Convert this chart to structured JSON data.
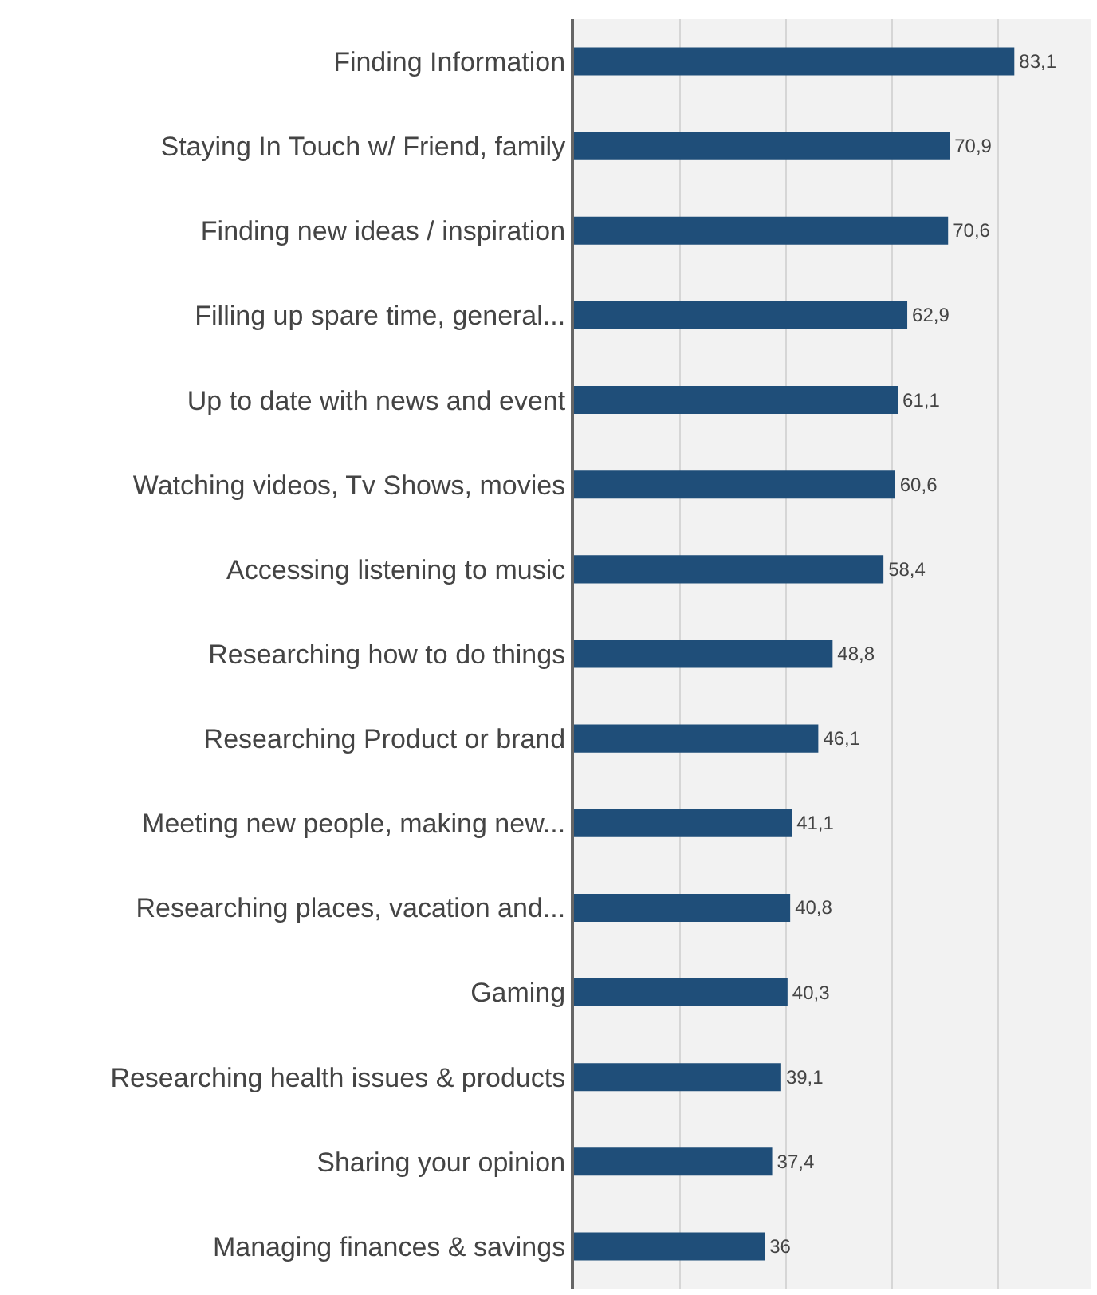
{
  "chart_data": {
    "type": "bar",
    "orientation": "horizontal",
    "categories": [
      "Finding Information",
      "Staying In Touch w/ Friend, family",
      "Finding new ideas / inspiration",
      "Filling up spare time, general...",
      "Up to date with news and event",
      "Watching videos, Tv Shows, movies",
      "Accessing listening to music",
      "Researching how to do things",
      "Researching Product or brand",
      "Meeting new people, making new...",
      "Researching places, vacation and...",
      "Gaming",
      "Researching health issues & products",
      "Sharing your opinion",
      "Managing finances & savings"
    ],
    "values": [
      83.1,
      70.9,
      70.6,
      62.9,
      61.1,
      60.6,
      58.4,
      48.8,
      46.1,
      41.1,
      40.8,
      40.3,
      39.1,
      37.4,
      36
    ],
    "value_labels": [
      "83,1",
      "70,9",
      "70,6",
      "62,9",
      "61,1",
      "60,6",
      "58,4",
      "48,8",
      "46,1",
      "41,1",
      "40,8",
      "40,3",
      "39,1",
      "37,4",
      "36"
    ],
    "color": "#1f4e79",
    "xlim": [
      0,
      97.5
    ],
    "xticks": [
      {
        "value": 0,
        "label": null
      },
      {
        "value": 20,
        "label": null
      },
      {
        "value": 40,
        "label": null
      },
      {
        "value": 60,
        "label": null
      },
      {
        "value": 80,
        "label": null
      }
    ],
    "grid": "x",
    "tick_labels": "y"
  }
}
